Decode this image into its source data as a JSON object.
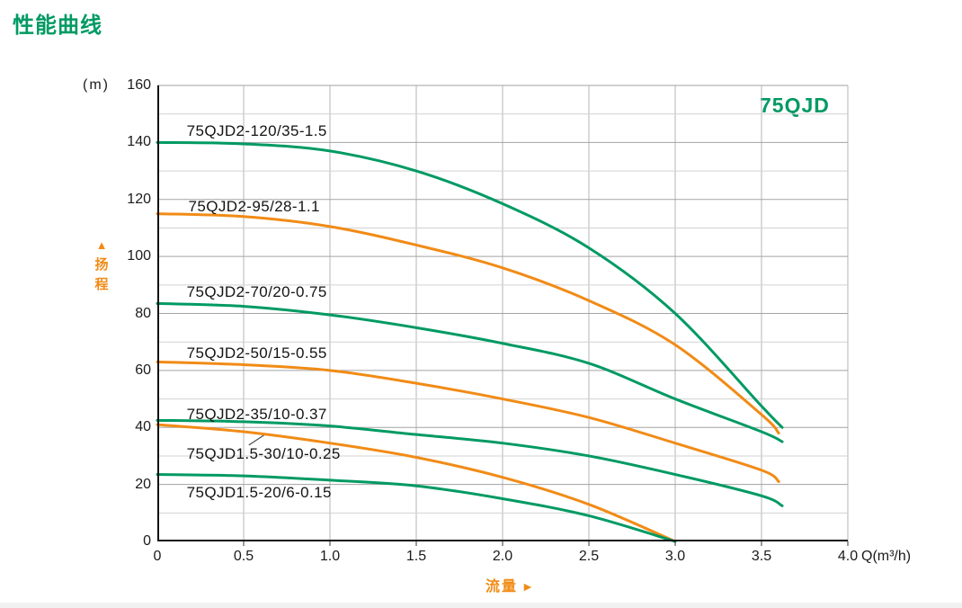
{
  "page_title": "性能曲线",
  "chart_data": {
    "type": "line",
    "title_badge": "75QJD",
    "x_axis": {
      "label": "流量",
      "arrow_icon": "►",
      "unit": "Q(m³/h)",
      "min": 0,
      "max": 4,
      "tick_labels": [
        "0",
        "0.5",
        "1.0",
        "1.5",
        "2.0",
        "2.5",
        "3.0",
        "3.5",
        "4.0"
      ],
      "grid_step": 0.5
    },
    "y_axis": {
      "label": "扬程",
      "arrow_icon": "▲",
      "unit": "(m)",
      "min": 0,
      "max": 160,
      "tick_labels": [
        "0",
        "20",
        "40",
        "60",
        "80",
        "100",
        "120",
        "140",
        "160"
      ],
      "major_grid_step": 20,
      "minor_grid_step": 10
    },
    "grid": "on",
    "legend_position": "labels-on-curves",
    "colors": {
      "green": "#009a63",
      "orange": "#f18b16"
    },
    "series": [
      {
        "label": "75QJD2-120/35-1.5",
        "color": "green",
        "points": [
          [
            0,
            140
          ],
          [
            0.5,
            139.5
          ],
          [
            1,
            137
          ],
          [
            1.5,
            130
          ],
          [
            2,
            118.5
          ],
          [
            2.5,
            103
          ],
          [
            3,
            80
          ],
          [
            3.5,
            47.5
          ],
          [
            3.62,
            40
          ]
        ],
        "label_at": [
          0.17,
          144
        ]
      },
      {
        "label": "75QJD2-95/28-1.1",
        "color": "orange",
        "points": [
          [
            0,
            115
          ],
          [
            0.5,
            114
          ],
          [
            1,
            110.5
          ],
          [
            1.5,
            104
          ],
          [
            2,
            96
          ],
          [
            2.5,
            84.5
          ],
          [
            3,
            69
          ],
          [
            3.5,
            44.5
          ],
          [
            3.6,
            38
          ]
        ],
        "label_at": [
          0.18,
          117.5
        ]
      },
      {
        "label": "75QJD2-70/20-0.75",
        "color": "green",
        "points": [
          [
            0,
            83.5
          ],
          [
            0.5,
            82.5
          ],
          [
            1,
            79.5
          ],
          [
            1.5,
            75
          ],
          [
            2,
            69.5
          ],
          [
            2.5,
            62.5
          ],
          [
            3,
            50
          ],
          [
            3.5,
            38.5
          ],
          [
            3.62,
            35
          ]
        ],
        "label_at": [
          0.17,
          87.5
        ]
      },
      {
        "label": "75QJD2-50/15-0.55",
        "color": "orange",
        "points": [
          [
            0,
            63
          ],
          [
            0.5,
            62
          ],
          [
            1,
            60
          ],
          [
            1.5,
            55.5
          ],
          [
            2,
            50
          ],
          [
            2.5,
            43.5
          ],
          [
            3,
            34.5
          ],
          [
            3.5,
            25
          ],
          [
            3.6,
            21
          ]
        ],
        "label_at": [
          0.17,
          66
        ]
      },
      {
        "label": "75QJD2-35/10-0.37",
        "color": "green",
        "points": [
          [
            0,
            42.5
          ],
          [
            0.5,
            42
          ],
          [
            1,
            40.5
          ],
          [
            1.5,
            37.5
          ],
          [
            2,
            34.5
          ],
          [
            2.5,
            30
          ],
          [
            3,
            23.5
          ],
          [
            3.5,
            16
          ],
          [
            3.62,
            12.5
          ]
        ],
        "label_at": [
          0.17,
          44.5
        ]
      },
      {
        "label": "75QJD1.5-30/10-0.25",
        "color": "orange",
        "points": [
          [
            0,
            41
          ],
          [
            0.5,
            38.5
          ],
          [
            1,
            34.5
          ],
          [
            1.5,
            29.5
          ],
          [
            2,
            22.5
          ],
          [
            2.5,
            13
          ],
          [
            3,
            0
          ]
        ],
        "label_at": [
          0.17,
          30.5
        ]
      },
      {
        "label": "75QJD1.5-20/6-0.15",
        "color": "green",
        "points": [
          [
            0,
            23.5
          ],
          [
            0.5,
            23
          ],
          [
            1,
            21.5
          ],
          [
            1.5,
            19.5
          ],
          [
            2,
            15
          ],
          [
            2.5,
            9
          ],
          [
            3,
            0
          ]
        ],
        "label_at": [
          0.17,
          17
        ]
      }
    ],
    "annotations": [
      {
        "type": "leader-line",
        "series": "75QJD1.5-30/10-0.25",
        "from": [
          0.53,
          33.8
        ],
        "to": [
          0.63,
          37.8
        ]
      }
    ]
  }
}
